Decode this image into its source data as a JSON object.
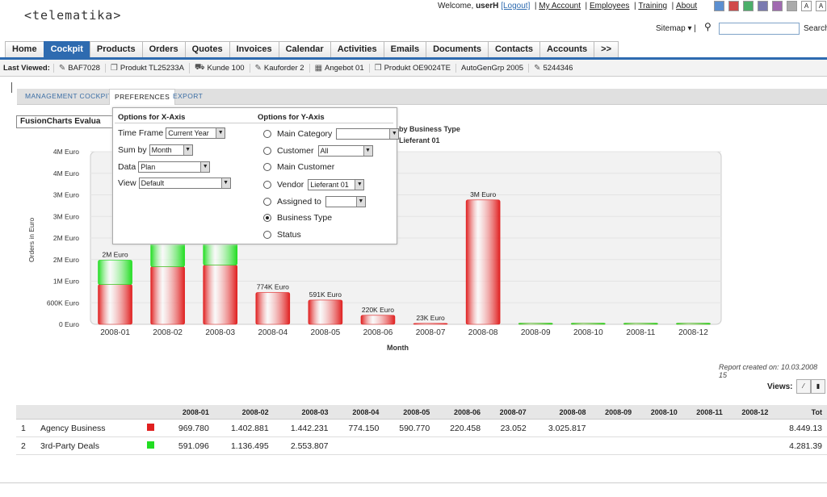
{
  "header": {
    "logo": "<telematika>",
    "welcome": "Welcome,",
    "user": "userH",
    "logout": "[Logout]",
    "links": [
      "My Account",
      "Employees",
      "Training",
      "About"
    ],
    "sitemap": "Sitemap",
    "search_button": "Search",
    "swatch_colors": [
      "#5b8fd0",
      "#d04a4a",
      "#4caf6a",
      "#7a7ab0",
      "#a06ab0",
      "#aaaaaa"
    ]
  },
  "nav": {
    "tabs": [
      "Home",
      "Cockpit",
      "Products",
      "Orders",
      "Quotes",
      "Invoices",
      "Calendar",
      "Activities",
      "Emails",
      "Documents",
      "Contacts",
      "Accounts",
      ">>"
    ],
    "active": "Cockpit"
  },
  "last_viewed": {
    "label": "Last Viewed:",
    "items": [
      "BAF7028",
      "Produkt TL25233A",
      "Kunde 100",
      "Kauforder 2",
      "Angebot 01",
      "Produkt OE9024TE",
      "AutoGenGrp 2005",
      "5244346"
    ]
  },
  "subtabs": {
    "cockpit": "MANAGEMENT COCKPIT",
    "preferences": "PREFERENCES",
    "export": "EXPORT"
  },
  "fusion_label": "FusionCharts Evalua",
  "prefs": {
    "x_title": "Options for X-Axis",
    "y_title": "Options for Y-Axis",
    "time_frame_label": "Time Frame",
    "time_frame_value": "Current Year",
    "sum_by_label": "Sum by",
    "sum_by_value": "Month",
    "data_label": "Data",
    "data_value": "Plan",
    "view_label": "View",
    "view_value": "Default",
    "y_options": [
      "Main Category",
      "Customer",
      "Main Customer",
      "Vendor",
      "Assigned to",
      "Business Type",
      "Status"
    ],
    "customer_value": "All",
    "vendor_value": "Lieferant 01",
    "selected": "Business Type"
  },
  "chart_data": {
    "type": "bar",
    "subtitle1": "by Business Type",
    "subtitle2": "Lieferant 01",
    "xlabel": "Month",
    "ylabel": "Orders in Euro",
    "categories": [
      "2008-01",
      "2008-02",
      "2008-03",
      "2008-04",
      "2008-05",
      "2008-06",
      "2008-07",
      "2008-08",
      "2008-09",
      "2008-10",
      "2008-11",
      "2008-12"
    ],
    "series": [
      {
        "name": "Agency Business",
        "color": "#e02020",
        "values": [
          969780,
          1402881,
          1442231,
          774150,
          590770,
          220458,
          23052,
          3025817,
          0,
          0,
          0,
          0
        ]
      },
      {
        "name": "3rd-Party Deals",
        "color": "#22dd22",
        "values": [
          591096,
          1136495,
          2553807,
          0,
          0,
          0,
          0,
          0,
          0,
          0,
          0,
          0
        ]
      }
    ],
    "total_labels": [
      "2M Euro",
      "",
      "",
      "774K Euro",
      "591K Euro",
      "220K Euro",
      "23K Euro",
      "3M Euro",
      "",
      "",
      "",
      ""
    ],
    "yticks": [
      "0 Euro",
      "600K Euro",
      "1M Euro",
      "2M Euro",
      "2M Euro",
      "3M Euro",
      "3M Euro",
      "4M Euro",
      "4M Euro"
    ],
    "ylim": [
      0,
      4200000
    ]
  },
  "report_created": "Report created on: 10.03.2008 15",
  "views_label": "Views:",
  "table": {
    "headers": [
      "2008-01",
      "2008-02",
      "2008-03",
      "2008-04",
      "2008-05",
      "2008-06",
      "2008-07",
      "2008-08",
      "2008-09",
      "2008-10",
      "2008-11",
      "2008-12",
      "Tot"
    ],
    "rows": [
      {
        "num": "1",
        "name": "Agency Business",
        "color": "#e02020",
        "values": [
          "969.780",
          "1.402.881",
          "1.442.231",
          "774.150",
          "590.770",
          "220.458",
          "23.052",
          "3.025.817",
          "",
          "",
          "",
          ""
        ],
        "total": "8.449.13"
      },
      {
        "num": "2",
        "name": "3rd-Party Deals",
        "color": "#22dd22",
        "values": [
          "591.096",
          "1.136.495",
          "2.553.807",
          "",
          "",
          "",
          "",
          "",
          "",
          "",
          "",
          ""
        ],
        "total": "4.281.39"
      }
    ]
  }
}
